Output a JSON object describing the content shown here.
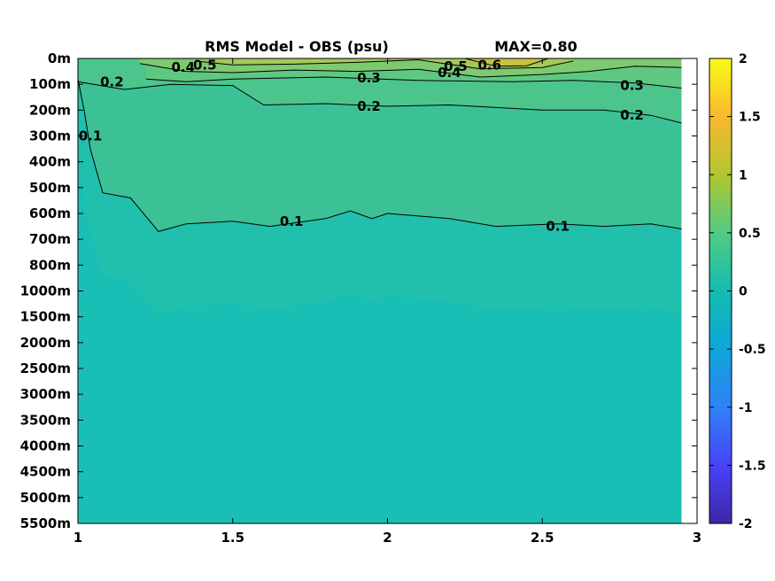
{
  "chart_data": {
    "type": "heatmap",
    "title": "RMS Model - OBS (psu)",
    "max_label": "MAX=0.80",
    "x_ticks": [
      1,
      1.5,
      2,
      2.5,
      3
    ],
    "x_range": [
      1,
      3
    ],
    "x_data_max": 2.95,
    "y_tick_labels": [
      "0m",
      "100m",
      "200m",
      "300m",
      "400m",
      "500m",
      "600m",
      "700m",
      "800m",
      "1000m",
      "1500m",
      "2000m",
      "2500m",
      "3000m",
      "3500m",
      "4000m",
      "4500m",
      "5000m",
      "5500m"
    ],
    "y_range_index": [
      0,
      18
    ],
    "colorbar": {
      "ticks": [
        2,
        1.5,
        1,
        0.5,
        0,
        -0.5,
        -1,
        -1.5,
        -2
      ],
      "tick_labels": [
        "2",
        "1.5",
        "1",
        "0.5",
        "0",
        "-0.5",
        "-1",
        "-1.5",
        "-2"
      ],
      "range": [
        -2,
        2
      ],
      "colormap": "parula",
      "colors": [
        "#3e26a8",
        "#4743f8",
        "#2f82f7",
        "#10a5da",
        "#12bcb0",
        "#52cc83",
        "#b2c62f",
        "#f9b82f",
        "#f9fb15"
      ]
    },
    "contours": [
      {
        "level": 0.1,
        "label": "0.1",
        "points": [
          [
            1.0,
            0.8
          ],
          [
            1.02,
            2.0
          ],
          [
            1.04,
            3.5
          ],
          [
            1.08,
            5.2
          ],
          [
            1.17,
            5.4
          ],
          [
            1.26,
            6.7
          ],
          [
            1.35,
            6.4
          ],
          [
            1.5,
            6.3
          ],
          [
            1.62,
            6.5
          ],
          [
            1.8,
            6.2
          ],
          [
            1.88,
            5.9
          ],
          [
            1.95,
            6.2
          ],
          [
            2.0,
            6.0
          ],
          [
            2.2,
            6.2
          ],
          [
            2.35,
            6.5
          ],
          [
            2.55,
            6.4
          ],
          [
            2.7,
            6.5
          ],
          [
            2.85,
            6.4
          ],
          [
            2.95,
            6.6
          ]
        ]
      },
      {
        "level": 0.2,
        "label": "0.2",
        "points": [
          [
            1.0,
            0.9
          ],
          [
            1.15,
            1.2
          ],
          [
            1.3,
            1.0
          ],
          [
            1.5,
            1.05
          ],
          [
            1.6,
            1.8
          ],
          [
            1.8,
            1.75
          ],
          [
            2.0,
            1.85
          ],
          [
            2.2,
            1.8
          ],
          [
            2.5,
            2.0
          ],
          [
            2.7,
            2.0
          ],
          [
            2.85,
            2.2
          ],
          [
            2.95,
            2.5
          ]
        ]
      },
      {
        "level": 0.3,
        "label": "0.3",
        "points": [
          [
            1.22,
            0.8
          ],
          [
            1.35,
            0.9
          ],
          [
            1.5,
            0.8
          ],
          [
            1.8,
            0.72
          ],
          [
            2.1,
            0.85
          ],
          [
            2.4,
            0.9
          ],
          [
            2.6,
            0.85
          ],
          [
            2.8,
            0.95
          ],
          [
            2.95,
            1.15
          ]
        ]
      },
      {
        "level": 0.4,
        "label": "0.4",
        "points": [
          [
            1.2,
            0.2
          ],
          [
            1.35,
            0.5
          ],
          [
            1.5,
            0.55
          ],
          [
            1.7,
            0.45
          ],
          [
            1.9,
            0.5
          ],
          [
            2.1,
            0.42
          ],
          [
            2.3,
            0.72
          ],
          [
            2.5,
            0.62
          ],
          [
            2.65,
            0.5
          ],
          [
            2.8,
            0.3
          ],
          [
            2.95,
            0.35
          ]
        ]
      },
      {
        "level": 0.5,
        "label": "0.5",
        "points": [
          [
            1.38,
            0.1
          ],
          [
            1.5,
            0.25
          ],
          [
            1.7,
            0.22
          ],
          [
            1.9,
            0.15
          ],
          [
            2.1,
            0.05
          ],
          [
            2.3,
            0.4
          ],
          [
            2.5,
            0.35
          ],
          [
            2.6,
            0.1
          ]
        ]
      },
      {
        "level": 0.6,
        "label": "0.6",
        "points": [
          [
            2.25,
            0.0
          ],
          [
            2.35,
            0.3
          ],
          [
            2.45,
            0.28
          ],
          [
            2.52,
            0.0
          ]
        ]
      }
    ],
    "contour_labels": [
      {
        "text": "0.5",
        "x": 1.41,
        "y": 0.25
      },
      {
        "text": "0.4",
        "x": 1.34,
        "y": 0.35
      },
      {
        "text": "0.2",
        "x": 1.11,
        "y": 0.9
      },
      {
        "text": "0.3",
        "x": 1.94,
        "y": 0.75
      },
      {
        "text": "0.5",
        "x": 2.22,
        "y": 0.3
      },
      {
        "text": "0.4",
        "x": 2.2,
        "y": 0.55
      },
      {
        "text": "0.6",
        "x": 2.33,
        "y": 0.25
      },
      {
        "text": "0.3",
        "x": 2.79,
        "y": 1.05
      },
      {
        "text": "0.2",
        "x": 1.94,
        "y": 1.85
      },
      {
        "text": "0.2",
        "x": 2.79,
        "y": 2.2
      },
      {
        "text": "0.1",
        "x": 1.04,
        "y": 3.0
      },
      {
        "text": "0.1",
        "x": 1.69,
        "y": 6.3
      },
      {
        "text": "0.1",
        "x": 2.55,
        "y": 6.5
      }
    ]
  }
}
